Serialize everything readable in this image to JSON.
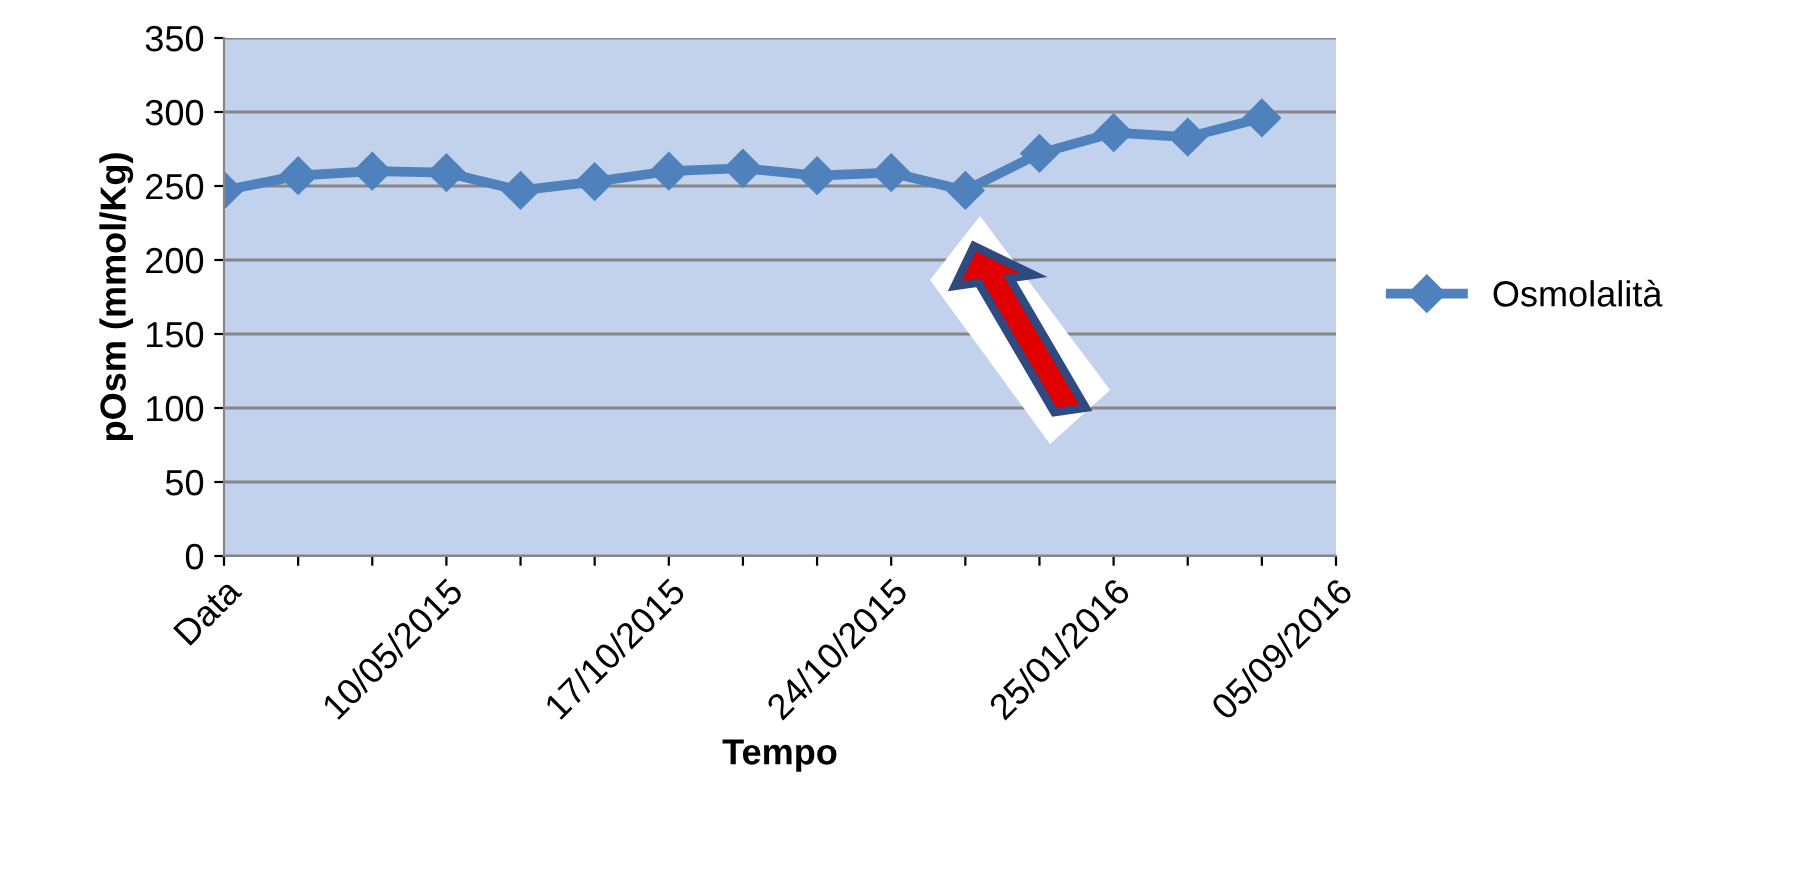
{
  "chart_data": {
    "type": "line",
    "xlabel": "Tempo",
    "ylabel": "pOsm (mmol/Kg)",
    "categories": [
      "Data",
      null,
      null,
      "10/05/2015",
      null,
      null,
      "17/10/2015",
      null,
      null,
      "24/10/2015",
      null,
      null,
      "25/01/2016",
      null,
      null,
      "05/09/2016"
    ],
    "series": [
      {
        "name": "Osmolalità",
        "color": "#4f81bd",
        "values": [
          247,
          257,
          260,
          259,
          247,
          253,
          260,
          262,
          257,
          259,
          247,
          272,
          286,
          283,
          296,
          null
        ]
      }
    ],
    "ylim": [
      0,
      350
    ],
    "yticks": [
      0,
      50,
      100,
      150,
      200,
      250,
      300,
      350
    ],
    "grid": "y",
    "legend": "right",
    "marker": "diamond",
    "line_style": "solid"
  }
}
